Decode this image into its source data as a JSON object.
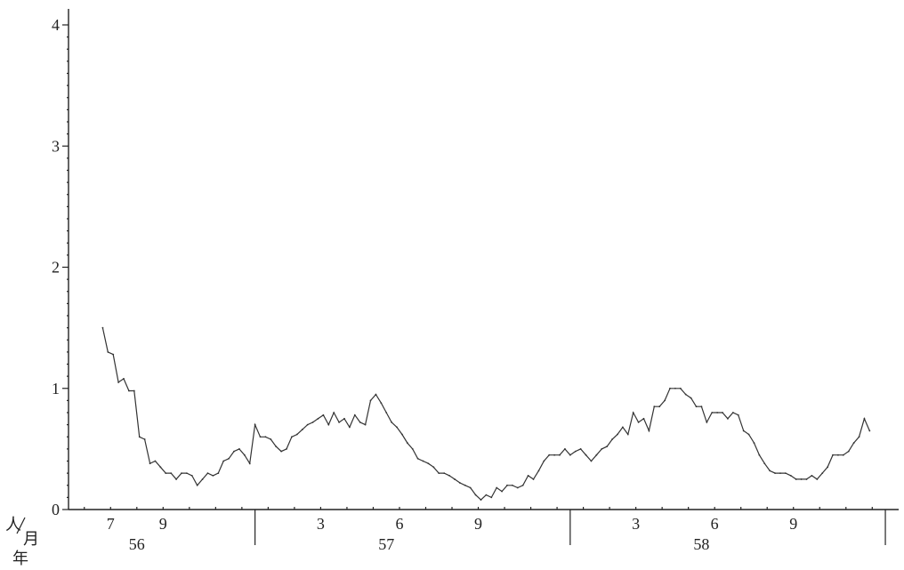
{
  "chart_data": {
    "type": "line",
    "title": "",
    "xlabel": "",
    "ylabel": "",
    "unit_labels": [
      "人",
      "月",
      "年"
    ],
    "ylim": [
      0,
      4
    ],
    "yticks": [
      0,
      1,
      2,
      3,
      4
    ],
    "x_range": [
      5.5,
      36.6
    ],
    "month_labels": [
      {
        "x": 7,
        "label": "7"
      },
      {
        "x": 9,
        "label": "9"
      },
      {
        "x": 15,
        "label": "3"
      },
      {
        "x": 18,
        "label": "6"
      },
      {
        "x": 21,
        "label": "9"
      },
      {
        "x": 27,
        "label": "3"
      },
      {
        "x": 30,
        "label": "6"
      },
      {
        "x": 33,
        "label": "9"
      }
    ],
    "year_labels": [
      {
        "x": 8,
        "label": "56"
      },
      {
        "x": 17.5,
        "label": "57"
      },
      {
        "x": 29.5,
        "label": "58"
      }
    ],
    "year_boundaries": [
      12.5,
      24.5,
      36.5
    ],
    "series": [
      {
        "values": [
          [
            6.7,
            1.5
          ],
          [
            6.9,
            1.3
          ],
          [
            7.1,
            1.28
          ],
          [
            7.3,
            1.05
          ],
          [
            7.5,
            1.08
          ],
          [
            7.7,
            0.98
          ],
          [
            7.9,
            0.98
          ],
          [
            8.1,
            0.6
          ],
          [
            8.3,
            0.58
          ],
          [
            8.5,
            0.38
          ],
          [
            8.7,
            0.4
          ],
          [
            8.9,
            0.35
          ],
          [
            9.1,
            0.3
          ],
          [
            9.3,
            0.3
          ],
          [
            9.5,
            0.25
          ],
          [
            9.7,
            0.3
          ],
          [
            9.9,
            0.3
          ],
          [
            10.1,
            0.28
          ],
          [
            10.3,
            0.2
          ],
          [
            10.5,
            0.25
          ],
          [
            10.7,
            0.3
          ],
          [
            10.9,
            0.28
          ],
          [
            11.1,
            0.3
          ],
          [
            11.3,
            0.4
          ],
          [
            11.5,
            0.42
          ],
          [
            11.7,
            0.48
          ],
          [
            11.9,
            0.5
          ],
          [
            12.1,
            0.45
          ],
          [
            12.3,
            0.38
          ],
          [
            12.5,
            0.7
          ],
          [
            12.7,
            0.6
          ],
          [
            12.9,
            0.6
          ],
          [
            13.1,
            0.58
          ],
          [
            13.3,
            0.52
          ],
          [
            13.5,
            0.48
          ],
          [
            13.7,
            0.5
          ],
          [
            13.9,
            0.6
          ],
          [
            14.1,
            0.62
          ],
          [
            14.3,
            0.66
          ],
          [
            14.5,
            0.7
          ],
          [
            14.7,
            0.72
          ],
          [
            14.9,
            0.75
          ],
          [
            15.1,
            0.78
          ],
          [
            15.3,
            0.7
          ],
          [
            15.5,
            0.8
          ],
          [
            15.7,
            0.72
          ],
          [
            15.9,
            0.75
          ],
          [
            16.1,
            0.68
          ],
          [
            16.3,
            0.78
          ],
          [
            16.5,
            0.72
          ],
          [
            16.7,
            0.7
          ],
          [
            16.9,
            0.9
          ],
          [
            17.1,
            0.95
          ],
          [
            17.3,
            0.88
          ],
          [
            17.5,
            0.8
          ],
          [
            17.7,
            0.72
          ],
          [
            17.9,
            0.68
          ],
          [
            18.1,
            0.62
          ],
          [
            18.3,
            0.55
          ],
          [
            18.5,
            0.5
          ],
          [
            18.7,
            0.42
          ],
          [
            18.9,
            0.4
          ],
          [
            19.1,
            0.38
          ],
          [
            19.3,
            0.35
          ],
          [
            19.5,
            0.3
          ],
          [
            19.7,
            0.3
          ],
          [
            19.9,
            0.28
          ],
          [
            20.1,
            0.25
          ],
          [
            20.3,
            0.22
          ],
          [
            20.5,
            0.2
          ],
          [
            20.7,
            0.18
          ],
          [
            20.9,
            0.12
          ],
          [
            21.1,
            0.08
          ],
          [
            21.3,
            0.12
          ],
          [
            21.5,
            0.1
          ],
          [
            21.7,
            0.18
          ],
          [
            21.9,
            0.15
          ],
          [
            22.1,
            0.2
          ],
          [
            22.3,
            0.2
          ],
          [
            22.5,
            0.18
          ],
          [
            22.7,
            0.2
          ],
          [
            22.9,
            0.28
          ],
          [
            23.1,
            0.25
          ],
          [
            23.3,
            0.32
          ],
          [
            23.5,
            0.4
          ],
          [
            23.7,
            0.45
          ],
          [
            23.9,
            0.45
          ],
          [
            24.1,
            0.45
          ],
          [
            24.3,
            0.5
          ],
          [
            24.5,
            0.45
          ],
          [
            24.7,
            0.48
          ],
          [
            24.9,
            0.5
          ],
          [
            25.1,
            0.45
          ],
          [
            25.3,
            0.4
          ],
          [
            25.5,
            0.45
          ],
          [
            25.7,
            0.5
          ],
          [
            25.9,
            0.52
          ],
          [
            26.1,
            0.58
          ],
          [
            26.3,
            0.62
          ],
          [
            26.5,
            0.68
          ],
          [
            26.7,
            0.62
          ],
          [
            26.9,
            0.8
          ],
          [
            27.1,
            0.72
          ],
          [
            27.3,
            0.75
          ],
          [
            27.5,
            0.65
          ],
          [
            27.7,
            0.85
          ],
          [
            27.9,
            0.85
          ],
          [
            28.1,
            0.9
          ],
          [
            28.3,
            1.0
          ],
          [
            28.5,
            1.0
          ],
          [
            28.7,
            1.0
          ],
          [
            28.9,
            0.95
          ],
          [
            29.1,
            0.92
          ],
          [
            29.3,
            0.85
          ],
          [
            29.5,
            0.85
          ],
          [
            29.7,
            0.72
          ],
          [
            29.9,
            0.8
          ],
          [
            30.1,
            0.8
          ],
          [
            30.3,
            0.8
          ],
          [
            30.5,
            0.75
          ],
          [
            30.7,
            0.8
          ],
          [
            30.9,
            0.78
          ],
          [
            31.1,
            0.65
          ],
          [
            31.3,
            0.62
          ],
          [
            31.5,
            0.55
          ],
          [
            31.7,
            0.45
          ],
          [
            31.9,
            0.38
          ],
          [
            32.1,
            0.32
          ],
          [
            32.3,
            0.3
          ],
          [
            32.5,
            0.3
          ],
          [
            32.7,
            0.3
          ],
          [
            32.9,
            0.28
          ],
          [
            33.1,
            0.25
          ],
          [
            33.3,
            0.25
          ],
          [
            33.5,
            0.25
          ],
          [
            33.7,
            0.28
          ],
          [
            33.9,
            0.25
          ],
          [
            34.1,
            0.3
          ],
          [
            34.3,
            0.35
          ],
          [
            34.5,
            0.45
          ],
          [
            34.7,
            0.45
          ],
          [
            34.9,
            0.45
          ],
          [
            35.1,
            0.48
          ],
          [
            35.3,
            0.55
          ],
          [
            35.5,
            0.6
          ],
          [
            35.7,
            0.75
          ],
          [
            35.9,
            0.65
          ]
        ]
      }
    ]
  }
}
